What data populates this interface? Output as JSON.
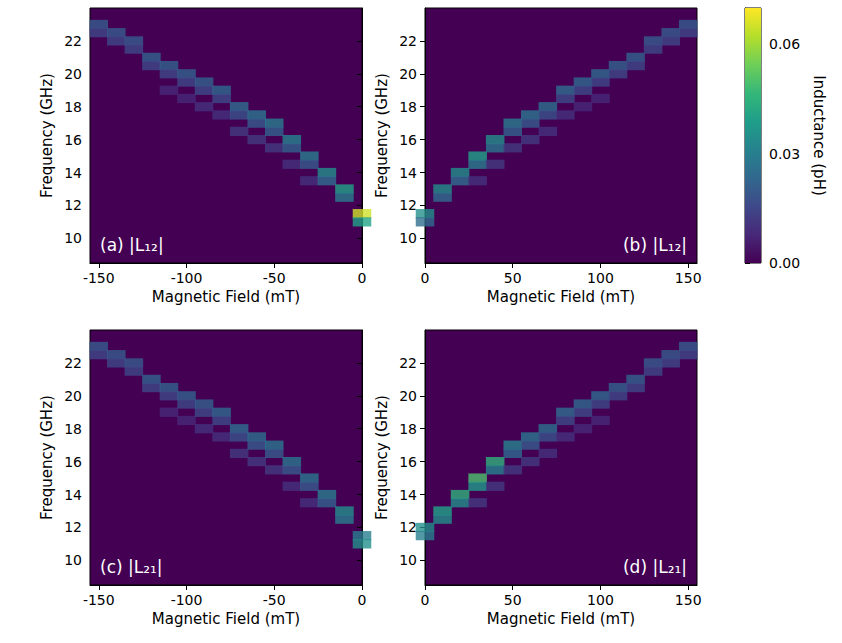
{
  "chart_data": [
    {
      "type": "heatmap",
      "panel": "(a)",
      "quantity": "|L₁₂|",
      "marker": "square",
      "x_label": "Magnetic Field (mT)",
      "y_label": "Frequency (GHz)",
      "xlim": [
        -155,
        0
      ],
      "xticks": [
        -150,
        -100,
        -50,
        0
      ],
      "ylim": [
        8.5,
        24
      ],
      "yticks": [
        10,
        12,
        14,
        16,
        18,
        20,
        22
      ],
      "cells": [
        [
          -150,
          23.0,
          0.02
        ],
        [
          -150,
          22.5,
          0.015
        ],
        [
          -140,
          22.5,
          0.02
        ],
        [
          -140,
          22.0,
          0.015
        ],
        [
          -130,
          22.0,
          0.02
        ],
        [
          -130,
          21.5,
          0.015
        ],
        [
          -120,
          21.0,
          0.022
        ],
        [
          -120,
          20.5,
          0.015
        ],
        [
          -110,
          20.5,
          0.022
        ],
        [
          -110,
          20.0,
          0.015
        ],
        [
          -110,
          19.0,
          0.008
        ],
        [
          -100,
          20.0,
          0.022
        ],
        [
          -100,
          19.5,
          0.015
        ],
        [
          -100,
          18.5,
          0.008
        ],
        [
          -90,
          19.5,
          0.022
        ],
        [
          -90,
          19.0,
          0.016
        ],
        [
          -90,
          18.0,
          0.01
        ],
        [
          -80,
          19.0,
          0.024
        ],
        [
          -80,
          18.5,
          0.016
        ],
        [
          -80,
          17.5,
          0.01
        ],
        [
          -70,
          18.0,
          0.025
        ],
        [
          -70,
          17.5,
          0.018
        ],
        [
          -70,
          16.5,
          0.012
        ],
        [
          -60,
          17.5,
          0.028
        ],
        [
          -60,
          17.0,
          0.02
        ],
        [
          -60,
          16.0,
          0.012
        ],
        [
          -50,
          17.0,
          0.03
        ],
        [
          -50,
          16.5,
          0.022
        ],
        [
          -50,
          15.5,
          0.012
        ],
        [
          -40,
          16.0,
          0.032
        ],
        [
          -40,
          15.5,
          0.022
        ],
        [
          -40,
          14.5,
          0.01
        ],
        [
          -30,
          15.0,
          0.03
        ],
        [
          -30,
          14.5,
          0.02
        ],
        [
          -30,
          13.5,
          0.01
        ],
        [
          -20,
          14.0,
          0.035
        ],
        [
          -20,
          13.5,
          0.025
        ],
        [
          -10,
          13.0,
          0.04
        ],
        [
          -10,
          12.5,
          0.03
        ],
        [
          0,
          11.5,
          0.065
        ],
        [
          0,
          11.0,
          0.04
        ]
      ]
    },
    {
      "type": "heatmap",
      "panel": "(b)",
      "quantity": "|L₁₂|",
      "marker": "square",
      "x_label": "Magnetic Field (mT)",
      "y_label": "Frequency (GHz)",
      "xlim": [
        0,
        155
      ],
      "xticks": [
        0,
        50,
        100,
        150
      ],
      "ylim": [
        8.5,
        24
      ],
      "yticks": [
        10,
        12,
        14,
        16,
        18,
        20,
        22
      ],
      "cells": [
        [
          0,
          11.5,
          0.035
        ],
        [
          0,
          11.0,
          0.025
        ],
        [
          10,
          13.0,
          0.035
        ],
        [
          10,
          12.5,
          0.025
        ],
        [
          20,
          14.0,
          0.035
        ],
        [
          20,
          13.5,
          0.025
        ],
        [
          30,
          15.0,
          0.04
        ],
        [
          30,
          14.5,
          0.03
        ],
        [
          30,
          13.5,
          0.01
        ],
        [
          40,
          16.0,
          0.035
        ],
        [
          40,
          15.5,
          0.028
        ],
        [
          40,
          14.5,
          0.012
        ],
        [
          50,
          17.0,
          0.03
        ],
        [
          50,
          16.5,
          0.022
        ],
        [
          50,
          15.5,
          0.012
        ],
        [
          60,
          17.5,
          0.028
        ],
        [
          60,
          17.0,
          0.02
        ],
        [
          60,
          16.0,
          0.012
        ],
        [
          70,
          18.0,
          0.026
        ],
        [
          70,
          17.5,
          0.018
        ],
        [
          70,
          16.5,
          0.01
        ],
        [
          80,
          19.0,
          0.025
        ],
        [
          80,
          18.5,
          0.016
        ],
        [
          80,
          17.5,
          0.01
        ],
        [
          90,
          19.5,
          0.024
        ],
        [
          90,
          19.0,
          0.016
        ],
        [
          90,
          18.0,
          0.008
        ],
        [
          100,
          20.0,
          0.024
        ],
        [
          100,
          19.5,
          0.015
        ],
        [
          100,
          18.5,
          0.008
        ],
        [
          110,
          20.5,
          0.022
        ],
        [
          110,
          20.0,
          0.015
        ],
        [
          120,
          21.0,
          0.022
        ],
        [
          120,
          20.5,
          0.015
        ],
        [
          130,
          22.0,
          0.02
        ],
        [
          130,
          21.5,
          0.015
        ],
        [
          140,
          22.5,
          0.02
        ],
        [
          140,
          22.0,
          0.015
        ],
        [
          150,
          23.0,
          0.02
        ],
        [
          150,
          22.5,
          0.015
        ]
      ]
    },
    {
      "type": "heatmap",
      "panel": "(c)",
      "quantity": "|L₂₁|",
      "marker": "square",
      "x_label": "Magnetic Field (mT)",
      "y_label": "Frequency (GHz)",
      "xlim": [
        -155,
        0
      ],
      "xticks": [
        -150,
        -100,
        -50,
        0
      ],
      "ylim": [
        8.5,
        24
      ],
      "yticks": [
        10,
        12,
        14,
        16,
        18,
        20,
        22
      ],
      "cells": [
        [
          -150,
          23.0,
          0.02
        ],
        [
          -150,
          22.5,
          0.015
        ],
        [
          -140,
          22.5,
          0.02
        ],
        [
          -140,
          22.0,
          0.015
        ],
        [
          -130,
          22.0,
          0.02
        ],
        [
          -130,
          21.5,
          0.015
        ],
        [
          -120,
          21.0,
          0.022
        ],
        [
          -120,
          20.5,
          0.015
        ],
        [
          -110,
          20.5,
          0.022
        ],
        [
          -110,
          20.0,
          0.015
        ],
        [
          -110,
          19.0,
          0.008
        ],
        [
          -100,
          20.0,
          0.022
        ],
        [
          -100,
          19.5,
          0.015
        ],
        [
          -100,
          18.5,
          0.008
        ],
        [
          -90,
          19.5,
          0.022
        ],
        [
          -90,
          19.0,
          0.016
        ],
        [
          -90,
          18.0,
          0.01
        ],
        [
          -80,
          19.0,
          0.024
        ],
        [
          -80,
          18.5,
          0.016
        ],
        [
          -80,
          17.5,
          0.01
        ],
        [
          -70,
          18.0,
          0.025
        ],
        [
          -70,
          17.5,
          0.018
        ],
        [
          -70,
          16.5,
          0.012
        ],
        [
          -60,
          17.5,
          0.026
        ],
        [
          -60,
          17.0,
          0.02
        ],
        [
          -60,
          16.0,
          0.012
        ],
        [
          -50,
          17.0,
          0.028
        ],
        [
          -50,
          16.5,
          0.02
        ],
        [
          -50,
          15.5,
          0.012
        ],
        [
          -40,
          16.0,
          0.028
        ],
        [
          -40,
          15.5,
          0.02
        ],
        [
          -40,
          14.5,
          0.01
        ],
        [
          -30,
          15.0,
          0.028
        ],
        [
          -30,
          14.5,
          0.02
        ],
        [
          -30,
          13.5,
          0.01
        ],
        [
          -20,
          14.0,
          0.03
        ],
        [
          -20,
          13.5,
          0.022
        ],
        [
          -10,
          13.0,
          0.035
        ],
        [
          -10,
          12.5,
          0.03
        ],
        [
          0,
          11.5,
          0.03
        ],
        [
          0,
          11.0,
          0.035
        ]
      ]
    },
    {
      "type": "heatmap",
      "panel": "(d)",
      "quantity": "|L₂₁|",
      "marker": "square",
      "x_label": "Magnetic Field (mT)",
      "y_label": "Frequency (GHz)",
      "xlim": [
        0,
        155
      ],
      "xticks": [
        0,
        50,
        100,
        150
      ],
      "ylim": [
        8.5,
        24
      ],
      "yticks": [
        10,
        12,
        14,
        16,
        18,
        20,
        22
      ],
      "cells": [
        [
          0,
          12.0,
          0.035
        ],
        [
          0,
          11.5,
          0.03
        ],
        [
          10,
          13.0,
          0.04
        ],
        [
          10,
          12.5,
          0.035
        ],
        [
          20,
          14.0,
          0.045
        ],
        [
          20,
          13.5,
          0.035
        ],
        [
          30,
          15.0,
          0.05
        ],
        [
          30,
          14.5,
          0.038
        ],
        [
          30,
          13.5,
          0.012
        ],
        [
          40,
          16.0,
          0.045
        ],
        [
          40,
          15.5,
          0.032
        ],
        [
          40,
          14.5,
          0.012
        ],
        [
          50,
          17.0,
          0.032
        ],
        [
          50,
          16.5,
          0.024
        ],
        [
          50,
          15.5,
          0.012
        ],
        [
          60,
          17.5,
          0.028
        ],
        [
          60,
          17.0,
          0.02
        ],
        [
          60,
          16.0,
          0.012
        ],
        [
          70,
          18.0,
          0.026
        ],
        [
          70,
          17.5,
          0.018
        ],
        [
          70,
          16.5,
          0.01
        ],
        [
          80,
          19.0,
          0.025
        ],
        [
          80,
          18.5,
          0.016
        ],
        [
          80,
          17.5,
          0.01
        ],
        [
          90,
          19.5,
          0.024
        ],
        [
          90,
          19.0,
          0.016
        ],
        [
          90,
          18.0,
          0.008
        ],
        [
          100,
          20.0,
          0.024
        ],
        [
          100,
          19.5,
          0.015
        ],
        [
          100,
          18.5,
          0.008
        ],
        [
          110,
          20.5,
          0.022
        ],
        [
          110,
          20.0,
          0.015
        ],
        [
          120,
          21.0,
          0.022
        ],
        [
          120,
          20.5,
          0.015
        ],
        [
          130,
          22.0,
          0.02
        ],
        [
          130,
          21.5,
          0.015
        ],
        [
          140,
          22.5,
          0.02
        ],
        [
          140,
          22.0,
          0.015
        ],
        [
          150,
          23.0,
          0.02
        ],
        [
          150,
          22.5,
          0.015
        ]
      ]
    }
  ],
  "colorbar": {
    "label": "Inductance (pH)",
    "range": [
      0,
      0.07
    ],
    "ticks": [
      {
        "value": 0,
        "label": "0.00"
      },
      {
        "value": 0.03,
        "label": "0.03"
      },
      {
        "value": 0.06,
        "label": "0.06"
      }
    ]
  }
}
